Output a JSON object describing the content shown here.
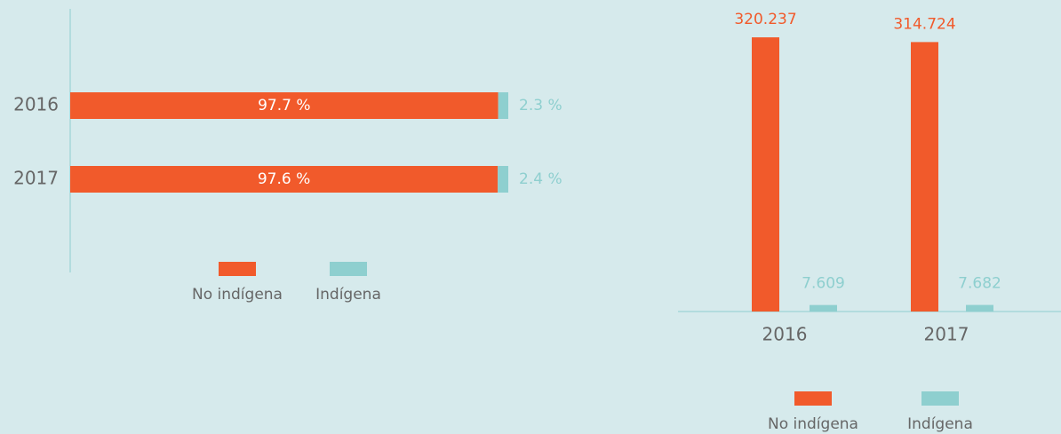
{
  "chart_data": [
    {
      "type": "bar",
      "orientation": "horizontal",
      "stacked": true,
      "categories": [
        "2016",
        "2017"
      ],
      "series": [
        {
          "name": "No indígena",
          "color": "#f15a2b",
          "values": [
            97.7,
            97.6
          ],
          "value_labels": [
            "97.7 %",
            "97.6 %"
          ]
        },
        {
          "name": "Indígena",
          "color": "#8ecfcf",
          "values": [
            2.3,
            2.4
          ],
          "value_labels": [
            "2.3 %",
            "2.4 %"
          ]
        }
      ],
      "xlim": [
        0,
        100
      ]
    },
    {
      "type": "bar",
      "orientation": "vertical",
      "stacked": false,
      "categories": [
        "2016",
        "2017"
      ],
      "series": [
        {
          "name": "No indígena",
          "color": "#f15a2b",
          "values": [
            320237,
            314724
          ],
          "value_labels": [
            "320.237",
            "314.724"
          ]
        },
        {
          "name": "Indígena",
          "color": "#8ecfcf",
          "values": [
            7609,
            7682
          ],
          "value_labels": [
            "7.609",
            "7.682"
          ]
        }
      ],
      "ylim": [
        0,
        340000
      ]
    }
  ]
}
